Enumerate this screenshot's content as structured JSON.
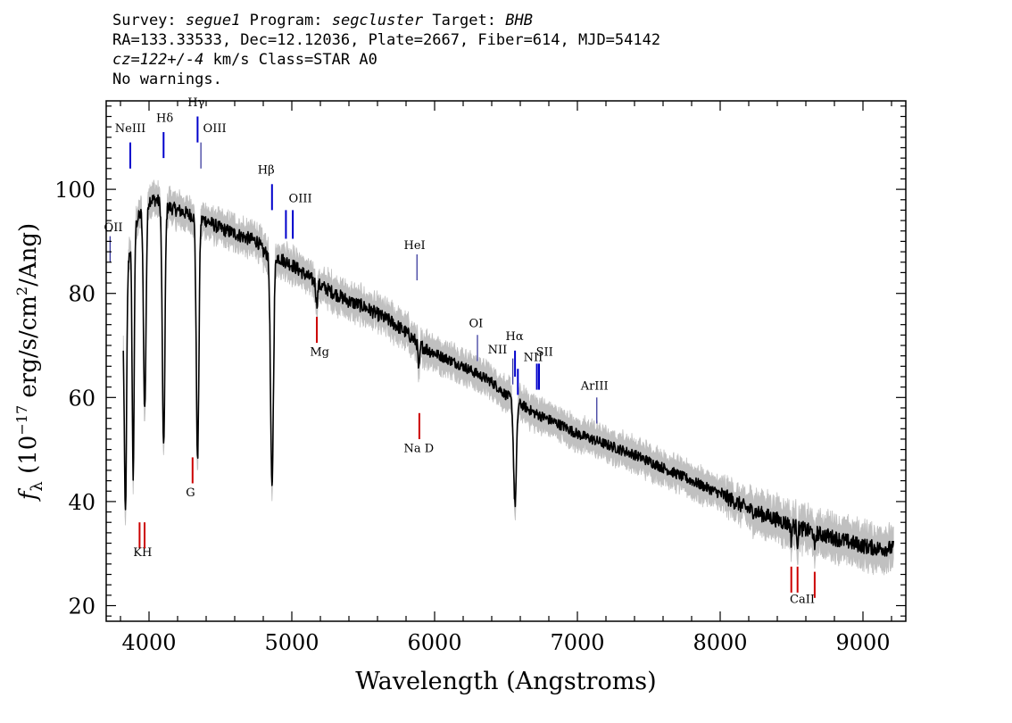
{
  "header": {
    "survey_label": "Survey:",
    "survey": "segue1",
    "program_label": "Program:",
    "program": "segcluster",
    "target_label": "Target:",
    "target": "BHB",
    "line2": "RA=133.33533, Dec=12.12036, Plate=2667, Fiber=614, MJD=54142",
    "redshift": "cz=122+/-4",
    "redshift_rest": " km/s Class=STAR A0",
    "warnings": "No warnings."
  },
  "chart_data": {
    "type": "line",
    "xlabel": "Wavelength (Angstroms)",
    "ylabel_main": "f",
    "ylabel_sub": "λ",
    "ylabel_rest": " (10",
    "ylabel_exp": "−17",
    "ylabel_units": " erg/s/cm",
    "ylabel_sq": "2",
    "ylabel_end": "/Ang)",
    "xlim": [
      3700,
      9300
    ],
    "ylim": [
      17,
      117
    ],
    "xticks": [
      4000,
      5000,
      6000,
      7000,
      8000,
      9000
    ],
    "yticks": [
      20,
      40,
      60,
      80,
      100
    ],
    "series": [
      {
        "role": "spectrum",
        "color": "#000000",
        "continuum": [
          [
            3820,
            76
          ],
          [
            3850,
            86
          ],
          [
            3900,
            93
          ],
          [
            3950,
            96
          ],
          [
            4000,
            98
          ],
          [
            4050,
            98
          ],
          [
            4100,
            97
          ],
          [
            4200,
            96
          ],
          [
            4300,
            95
          ],
          [
            4400,
            94
          ],
          [
            4500,
            92.5
          ],
          [
            4600,
            91.5
          ],
          [
            4700,
            90.5
          ],
          [
            4760,
            90
          ],
          [
            4800,
            88
          ],
          [
            4900,
            87
          ],
          [
            5000,
            85.5
          ],
          [
            5100,
            83.5
          ],
          [
            5200,
            81.5
          ],
          [
            5300,
            80
          ],
          [
            5400,
            78.5
          ],
          [
            5500,
            77.5
          ],
          [
            5600,
            76
          ],
          [
            5700,
            74.5
          ],
          [
            5800,
            72.5
          ],
          [
            5900,
            70
          ],
          [
            6000,
            68.5
          ],
          [
            6200,
            66
          ],
          [
            6400,
            63
          ],
          [
            6500,
            60.5
          ],
          [
            6700,
            57
          ],
          [
            6900,
            54.5
          ],
          [
            7000,
            53
          ],
          [
            7200,
            51
          ],
          [
            7400,
            49
          ],
          [
            7600,
            46.5
          ],
          [
            7800,
            44
          ],
          [
            8000,
            41.5
          ],
          [
            8200,
            38.5
          ],
          [
            8400,
            36.5
          ],
          [
            8600,
            34.5
          ],
          [
            8800,
            33
          ],
          [
            9000,
            31.5
          ],
          [
            9100,
            31
          ],
          [
            9200,
            31
          ]
        ],
        "absorption": [
          [
            3835,
            43,
            8
          ],
          [
            3889,
            47,
            7
          ],
          [
            3970,
            39,
            9
          ],
          [
            4102,
            47,
            9
          ],
          [
            4340,
            47,
            9
          ],
          [
            4861,
            45,
            10
          ],
          [
            5175,
            4,
            6
          ],
          [
            5890,
            5,
            6
          ],
          [
            6563,
            20,
            10
          ],
          [
            8498,
            3,
            4
          ],
          [
            8542,
            3,
            4
          ],
          [
            8662,
            4,
            4
          ]
        ]
      },
      {
        "role": "error-band",
        "color": "#c0c0c0",
        "width": 2.5
      }
    ],
    "line_markers": {
      "emission": [
        {
          "label": "NeIII",
          "wave": 3869,
          "y1": 104,
          "y2": 109,
          "color": "#0000cc",
          "lx": 3869,
          "ly": 111
        },
        {
          "label": "Hδ",
          "wave": 4102,
          "y1": 106,
          "y2": 111,
          "color": "#0000cc",
          "lx": 4110,
          "ly": 113
        },
        {
          "label": "Hγ",
          "wave": 4340,
          "y1": 109,
          "y2": 114,
          "color": "#0000cc",
          "lx": 4330,
          "ly": 116
        },
        {
          "label": "OIII",
          "wave": 4363,
          "y1": 104,
          "y2": 109,
          "color": "#000080",
          "lx": 4460,
          "ly": 111
        },
        {
          "label": "Hβ",
          "wave": 4861,
          "y1": 96,
          "y2": 101,
          "color": "#0000cc",
          "lx": 4820,
          "ly": 103
        },
        {
          "label": "OIII",
          "wave": 4959,
          "y1": 90.5,
          "y2": 96,
          "color": "#0000cc",
          "lx": 5060,
          "ly": 97.5
        },
        {
          "label": "OIII",
          "wave": 5007,
          "y1": 90.5,
          "y2": 96,
          "color": "#0000cc",
          "lx": null,
          "ly": null
        },
        {
          "label": "OII",
          "wave": 3727,
          "y1": 86,
          "y2": 91,
          "color": "#000080",
          "lx": 3727,
          "ly": 92
        },
        {
          "label": "HeI",
          "wave": 5876,
          "y1": 82.5,
          "y2": 87.5,
          "color": "#000080",
          "lx": 5860,
          "ly": 88.5
        },
        {
          "label": "OI",
          "wave": 6300,
          "y1": 67,
          "y2": 72,
          "color": "#000080",
          "lx": 6290,
          "ly": 73.5
        },
        {
          "label": "NII",
          "wave": 6548,
          "y1": 62.5,
          "y2": 67.5,
          "color": "#000080",
          "lx": 6440,
          "ly": 68.5
        },
        {
          "label": "Hα",
          "wave": 6563,
          "y1": 64,
          "y2": 69,
          "color": "#0000cc",
          "lx": 6560,
          "ly": 71
        },
        {
          "label": "NII",
          "wave": 6583,
          "y1": 60.5,
          "y2": 65.5,
          "color": "#0000cc",
          "lx": 6690,
          "ly": 67
        },
        {
          "label": "SII",
          "wave": 6716,
          "y1": 61.5,
          "y2": 66.5,
          "color": "#0000cc",
          "lx": 6770,
          "ly": 68
        },
        {
          "label": "SII",
          "wave": 6731,
          "y1": 61.5,
          "y2": 66.5,
          "color": "#0000cc",
          "lx": null,
          "ly": null
        },
        {
          "label": "ArIII",
          "wave": 7136,
          "y1": 55,
          "y2": 60,
          "color": "#000080",
          "lx": 7120,
          "ly": 61.5
        }
      ],
      "absorption": [
        {
          "label": "KH",
          "wave": 3934,
          "y1": 31,
          "y2": 36,
          "color": "#cc0000",
          "lx": 3955,
          "ly": 29.5
        },
        {
          "label": "",
          "wave": 3969,
          "y1": 31,
          "y2": 36,
          "color": "#cc0000",
          "lx": null,
          "ly": null
        },
        {
          "label": "G",
          "wave": 4305,
          "y1": 43.5,
          "y2": 48.5,
          "color": "#cc0000",
          "lx": 4290,
          "ly": 41
        },
        {
          "label": "Mg",
          "wave": 5175,
          "y1": 70.5,
          "y2": 75.5,
          "color": "#cc0000",
          "lx": 5195,
          "ly": 68
        },
        {
          "label": "Na D",
          "wave": 5893,
          "y1": 52,
          "y2": 57,
          "color": "#cc0000",
          "lx": 5890,
          "ly": 49.5
        },
        {
          "label": "CaII",
          "wave": 8498,
          "y1": 22.5,
          "y2": 27.5,
          "color": "#cc0000",
          "lx": 8575,
          "ly": 20.5
        },
        {
          "label": "",
          "wave": 8542,
          "y1": 22.5,
          "y2": 27.5,
          "color": "#cc0000",
          "lx": null,
          "ly": null
        },
        {
          "label": "",
          "wave": 8662,
          "y1": 21.5,
          "y2": 26.5,
          "color": "#cc0000",
          "lx": null,
          "ly": null
        }
      ]
    }
  }
}
